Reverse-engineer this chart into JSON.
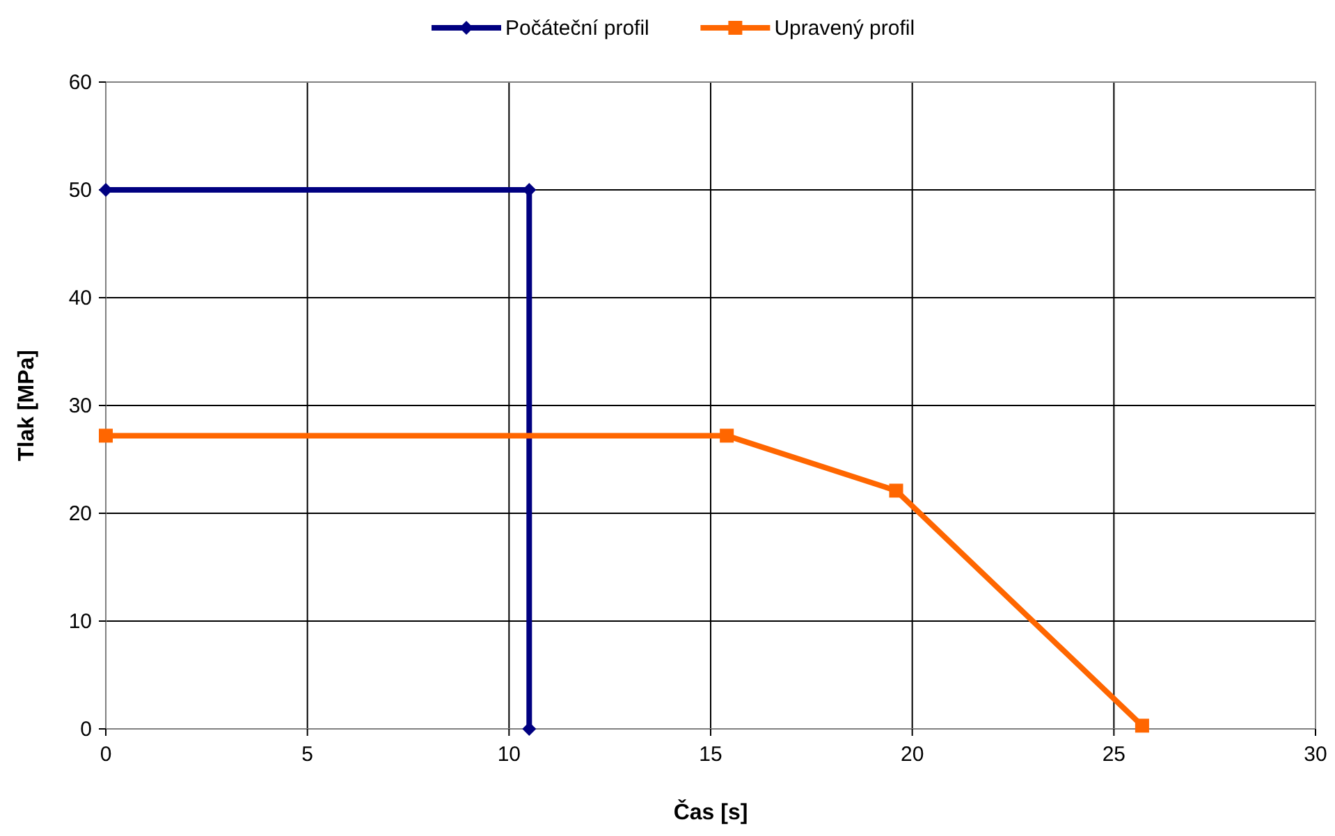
{
  "chart_data": {
    "type": "line",
    "xlabel": "Čas [s]",
    "ylabel": "Tlak [MPa]",
    "series": [
      {
        "name": "Počáteční profil",
        "color": "#000080",
        "marker": "diamond",
        "x": [
          0,
          10.5,
          10.5
        ],
        "values": [
          50,
          50,
          0
        ]
      },
      {
        "name": "Upravený profil",
        "color": "#ff6600",
        "marker": "square",
        "x": [
          0,
          15.4,
          19.6,
          25.7
        ],
        "values": [
          27.2,
          27.2,
          22.1,
          0.3
        ]
      }
    ],
    "xlim": [
      0,
      30
    ],
    "xticks": [
      0,
      5,
      10,
      15,
      20,
      25,
      30
    ],
    "ylim": [
      0,
      60
    ],
    "yticks": [
      0,
      10,
      20,
      30,
      40,
      50,
      60
    ],
    "grid": true,
    "legend": "top"
  }
}
